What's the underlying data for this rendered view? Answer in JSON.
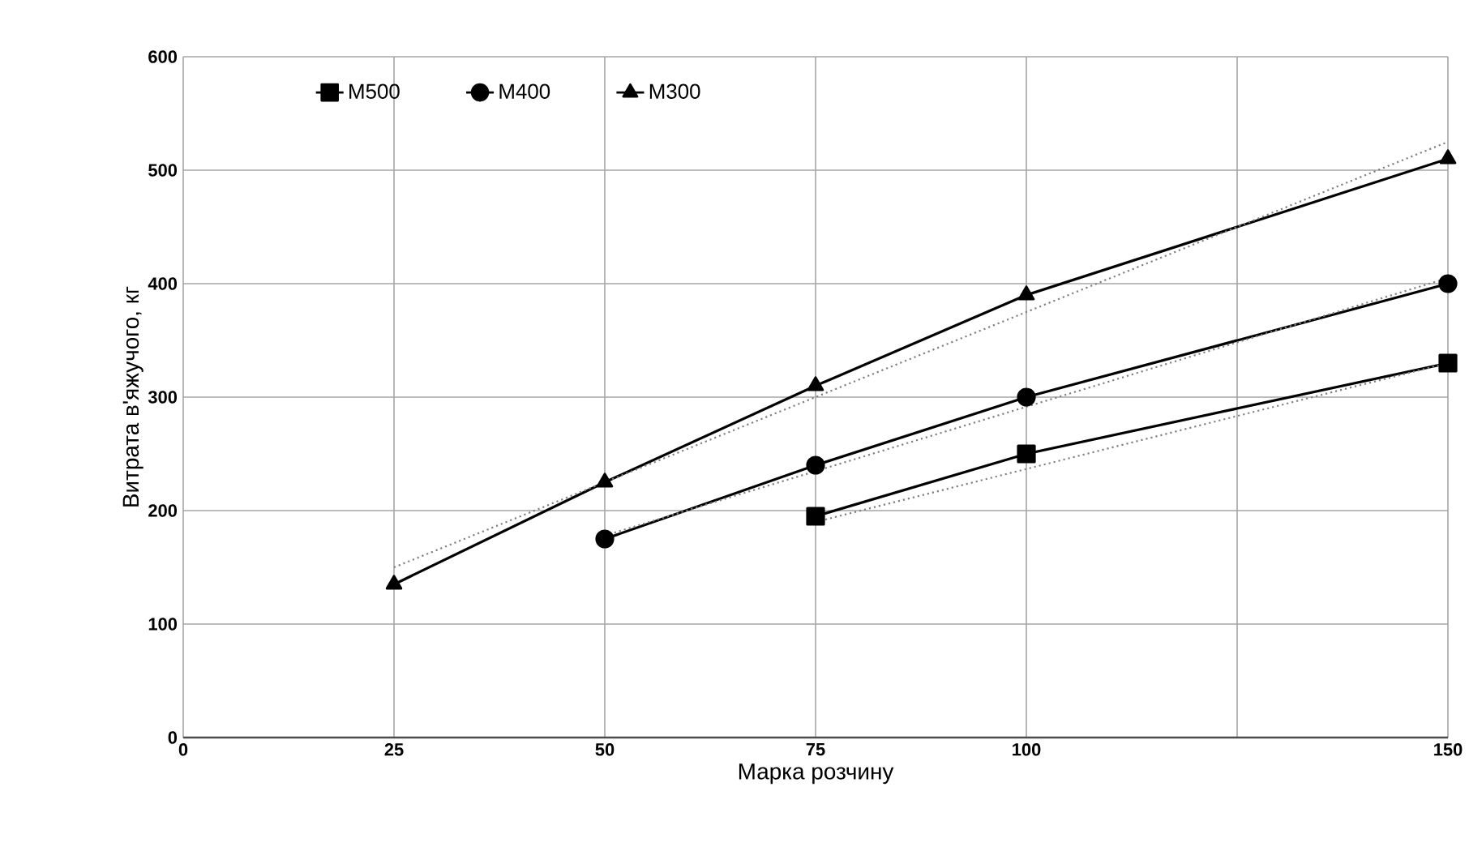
{
  "chart_data": {
    "type": "line",
    "xlabel": "Марка розчину",
    "ylabel": "Витрата в'яжучого, кг",
    "xlim": [
      0,
      150
    ],
    "xticks": [
      0,
      25,
      50,
      75,
      100,
      {
        "value": 125,
        "label": null
      },
      150
    ],
    "ylim": [
      0,
      600
    ],
    "yticks": [
      0,
      100,
      200,
      300,
      400,
      500,
      600
    ],
    "grid": true,
    "legend": "top left",
    "series": [
      {
        "name": "М500",
        "color": "#000000",
        "marker": "square",
        "line_style": "solid",
        "x": [
          75,
          100,
          150
        ],
        "values": [
          195,
          250,
          330
        ]
      },
      {
        "name": "М400",
        "color": "#000000",
        "marker": "circle",
        "line_style": "solid",
        "x": [
          50,
          75,
          100,
          150
        ],
        "values": [
          175,
          240,
          300,
          400
        ]
      },
      {
        "name": "М300",
        "color": "#000000",
        "marker": "triangle",
        "line_style": "solid",
        "x": [
          25,
          50,
          75,
          100,
          150
        ],
        "values": [
          135,
          225,
          310,
          390,
          510
        ]
      },
      {
        "color": "#808080",
        "marker": "none",
        "line_style": "dotted",
        "x": [
          75,
          150
        ],
        "values": [
          190,
          330
        ]
      },
      {
        "color": "#808080",
        "marker": "none",
        "line_style": "dotted",
        "x": [
          50,
          150
        ],
        "values": [
          178,
          405
        ]
      },
      {
        "color": "#808080",
        "marker": "none",
        "line_style": "dotted",
        "x": [
          25,
          150
        ],
        "values": [
          150,
          525
        ]
      }
    ]
  }
}
